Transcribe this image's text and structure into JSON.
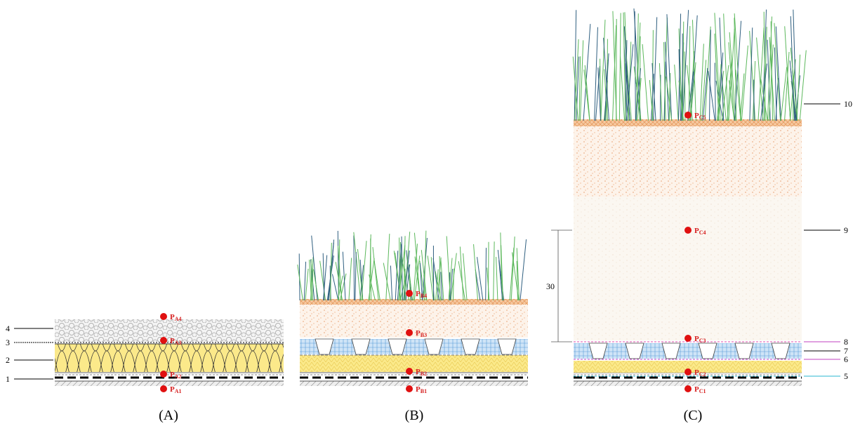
{
  "panels": [
    {
      "caption": "(A)",
      "points": [
        {
          "base": "P",
          "sub": "A1"
        },
        {
          "base": "P",
          "sub": "A2"
        },
        {
          "base": "P",
          "sub": "A3"
        },
        {
          "base": "P",
          "sub": "A4"
        }
      ]
    },
    {
      "caption": "(B)",
      "points": [
        {
          "base": "P",
          "sub": "B1"
        },
        {
          "base": "P",
          "sub": "B2"
        },
        {
          "base": "P",
          "sub": "B3"
        },
        {
          "base": "P",
          "sub": "B4"
        }
      ]
    },
    {
      "caption": "(C)",
      "points": [
        {
          "base": "P",
          "sub": "C1"
        },
        {
          "base": "P",
          "sub": "C2"
        },
        {
          "base": "P",
          "sub": "C3"
        },
        {
          "base": "P",
          "sub": "C4"
        },
        {
          "base": "P",
          "sub": "C5"
        }
      ]
    }
  ],
  "layer_labels": [
    "1",
    "2",
    "3",
    "4",
    "5",
    "6",
    "7",
    "8",
    "9",
    "10"
  ],
  "dimension": "30"
}
